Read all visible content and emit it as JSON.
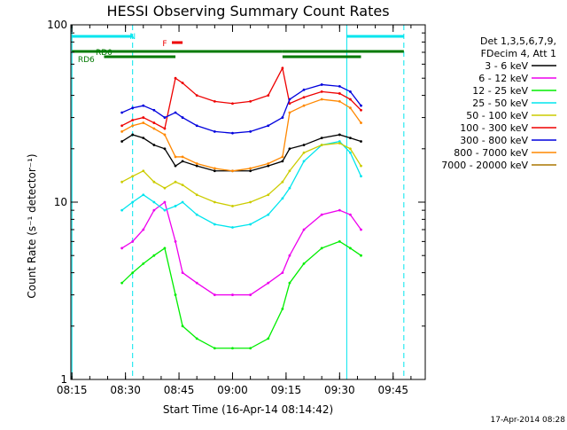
{
  "colors": {
    "cyan": "#00e5ee",
    "red": "#ee0000",
    "green": "#007a00",
    "blue": "#0000dd",
    "black": "#000000",
    "magenta": "#ee00ee",
    "lime": "#00ee00",
    "yellow": "#cccc00",
    "orange": "#ff8800",
    "brown": "#aa7700"
  },
  "footer": {
    "date_stamp": "17-Apr-2014 08:28"
  },
  "chart_data": {
    "type": "line",
    "title": "HESSI Observing Summary Count Rates",
    "xlabel": "Start Time (16-Apr-14 08:14:42)",
    "ylabel": "Count Rate (s⁻¹ detector⁻¹)",
    "y_scale": "log",
    "ylim": [
      1,
      100
    ],
    "xlim": [
      "08:14:42",
      "09:54:00"
    ],
    "x_ticks": [
      "08:15",
      "08:30",
      "08:45",
      "09:00",
      "09:15",
      "09:30",
      "09:45"
    ],
    "y_ticks": [
      "1",
      "10",
      "100"
    ],
    "legend_header": [
      "Det 1,3,5,6,7,9,",
      "FDecim 4, Att 1"
    ],
    "legend_position": "right",
    "x": [
      "08:29",
      "08:32",
      "08:35",
      "08:38",
      "08:41",
      "08:44",
      "08:46",
      "08:50",
      "08:55",
      "09:00",
      "09:05",
      "09:10",
      "09:14",
      "09:16",
      "09:20",
      "09:25",
      "09:30",
      "09:33",
      "09:36"
    ],
    "series": [
      {
        "name": "3 - 6 keV",
        "color": "black",
        "values": [
          22,
          24,
          23,
          21,
          20,
          16,
          17,
          16,
          15,
          15,
          15,
          16,
          17,
          20,
          21,
          23,
          24,
          23,
          22
        ]
      },
      {
        "name": "6 - 12 keV",
        "color": "magenta",
        "values": [
          5.5,
          6,
          7,
          9,
          10,
          6,
          4,
          3.5,
          3,
          3,
          3,
          3.5,
          4,
          5,
          7,
          8.5,
          9,
          8.5,
          7
        ]
      },
      {
        "name": "12 - 25 keV",
        "color": "lime",
        "values": [
          3.5,
          4,
          4.5,
          5,
          5.5,
          3,
          2,
          1.7,
          1.5,
          1.5,
          1.5,
          1.7,
          2.5,
          3.5,
          4.5,
          5.5,
          6,
          5.5,
          5
        ]
      },
      {
        "name": "25 - 50 keV",
        "color": "cyan",
        "values": [
          9,
          10,
          11,
          10,
          9,
          9.5,
          10,
          8.5,
          7.5,
          7.2,
          7.5,
          8.5,
          10.5,
          12,
          17,
          21,
          22,
          19,
          14
        ]
      },
      {
        "name": "50 - 100 keV",
        "color": "yellow",
        "values": [
          13,
          14,
          15,
          13,
          12,
          13,
          12.5,
          11,
          10,
          9.5,
          10,
          11,
          13,
          15,
          19,
          21,
          21.5,
          20,
          16
        ]
      },
      {
        "name": "100 - 300 keV",
        "color": "red",
        "values": [
          27,
          29,
          30,
          28,
          26,
          50,
          47,
          40,
          37,
          36,
          37,
          40,
          57,
          36,
          39,
          42,
          41,
          38,
          33
        ]
      },
      {
        "name": "300 - 800 keV",
        "color": "blue",
        "values": [
          32,
          34,
          35,
          33,
          30,
          32,
          30,
          27,
          25,
          24.5,
          25,
          27,
          30,
          38,
          43,
          46,
          45,
          42,
          35
        ]
      },
      {
        "name": "800 - 7000 keV",
        "color": "orange",
        "values": [
          25,
          27,
          28,
          26,
          24,
          18,
          18,
          16.5,
          15.5,
          15,
          15.5,
          16.5,
          18,
          32,
          35,
          38,
          37,
          34,
          28
        ]
      },
      {
        "name": "7000 - 20000 keV",
        "color": "brown",
        "values": [
          null,
          null,
          null,
          null,
          null,
          null,
          null,
          null,
          null,
          null,
          null,
          null,
          null,
          null,
          null,
          null,
          null,
          null,
          null
        ]
      }
    ],
    "annotations": [
      {
        "label": "N",
        "color": "cyan",
        "anchor_time": "08:32"
      },
      {
        "label": "F",
        "color": "red",
        "anchor_time": "08:41"
      },
      {
        "label": "RD0",
        "color": "green",
        "anchor_time": "08:24"
      },
      {
        "label": "RD6",
        "color": "green",
        "anchor_time": "08:19"
      }
    ],
    "boundary_lines": [
      "08:15",
      "08:32",
      "09:32",
      "09:48"
    ],
    "boundary_dashed": [
      false,
      true,
      false,
      true
    ]
  }
}
